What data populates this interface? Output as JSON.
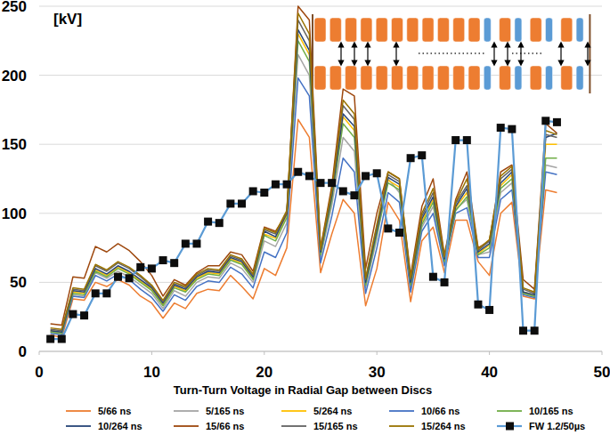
{
  "chart_data": {
    "type": "line",
    "ylabel": "[kV]",
    "xlabel": "Turn-Turn Voltage in Radial Gap between Discs",
    "x": [
      1,
      2,
      3,
      4,
      5,
      6,
      7,
      8,
      9,
      10,
      11,
      12,
      13,
      14,
      15,
      16,
      17,
      18,
      19,
      20,
      21,
      22,
      23,
      24,
      25,
      26,
      27,
      28,
      29,
      30,
      31,
      32,
      33,
      34,
      35,
      36,
      37,
      38,
      39,
      40,
      41,
      42,
      43,
      44,
      45,
      46
    ],
    "xlim": [
      0,
      50
    ],
    "xticks": [
      0,
      10,
      20,
      30,
      40,
      50
    ],
    "ylim": [
      0,
      250
    ],
    "yticks": [
      0,
      50,
      100,
      150,
      200,
      250
    ],
    "grid": true,
    "legend": "bottom",
    "series": [
      {
        "name": "5/66 ns",
        "color": "#ed7d31",
        "values": [
          12,
          10,
          38,
          37,
          50,
          47,
          52,
          48,
          40,
          35,
          24,
          35,
          31,
          42,
          45,
          44,
          55,
          47,
          38,
          60,
          55,
          75,
          168,
          155,
          57,
          85,
          110,
          100,
          33,
          60,
          108,
          95,
          36,
          80,
          90,
          57,
          95,
          95,
          65,
          55,
          100,
          108,
          40,
          38,
          117,
          115
        ]
      },
      {
        "name": "5/165 ns",
        "color": "#a5a5a5",
        "values": [
          14,
          13,
          41,
          40,
          57,
          53,
          58,
          54,
          48,
          42,
          31,
          44,
          40,
          50,
          54,
          53,
          64,
          60,
          50,
          80,
          76,
          93,
          215,
          200,
          68,
          106,
          155,
          145,
          46,
          82,
          125,
          115,
          46,
          90,
          105,
          64,
          103,
          110,
          70,
          72,
          115,
          122,
          42,
          40,
          135,
          133
        ]
      },
      {
        "name": "5/264 ns",
        "color": "#ffc000",
        "values": [
          15,
          14,
          43,
          42,
          59,
          55,
          61,
          57,
          51,
          45,
          34,
          47,
          44,
          53,
          57,
          56,
          67,
          64,
          53,
          85,
          82,
          99,
          230,
          215,
          71,
          112,
          170,
          160,
          49,
          87,
          124,
          119,
          49,
          94,
          110,
          66,
          104,
          115,
          71,
          77,
          120,
          128,
          43,
          41,
          150,
          150
        ]
      },
      {
        "name": "10/66 ns",
        "color": "#4472c4",
        "values": [
          13,
          12,
          40,
          39,
          55,
          51,
          56,
          52,
          45,
          39,
          29,
          41,
          37,
          47,
          51,
          50,
          61,
          56,
          46,
          72,
          68,
          86,
          198,
          185,
          64,
          98,
          140,
          130,
          42,
          75,
          115,
          108,
          43,
          87,
          100,
          62,
          100,
          104,
          68,
          68,
          110,
          117,
          41,
          39,
          130,
          128
        ]
      },
      {
        "name": "10/165 ns",
        "color": "#70ad47",
        "values": [
          14,
          13,
          42,
          41,
          58,
          54,
          60,
          56,
          50,
          44,
          33,
          46,
          43,
          52,
          56,
          55,
          66,
          63,
          52,
          84,
          80,
          97,
          225,
          210,
          70,
          110,
          165,
          155,
          48,
          85,
          122,
          117,
          48,
          92,
          108,
          65,
          102,
          112,
          70,
          75,
          118,
          125,
          42,
          40,
          140,
          140
        ]
      },
      {
        "name": "10/264 ns",
        "color": "#264478",
        "values": [
          15,
          14,
          44,
          43,
          60,
          56,
          62,
          58,
          52,
          46,
          35,
          48,
          45,
          54,
          58,
          57,
          68,
          65,
          54,
          87,
          83,
          100,
          233,
          218,
          72,
          113,
          172,
          163,
          50,
          88,
          126,
          121,
          50,
          96,
          112,
          67,
          105,
          118,
          72,
          78,
          122,
          130,
          43,
          41,
          155,
          158
        ]
      },
      {
        "name": "15/66 ns",
        "color": "#9e480e",
        "values": [
          20,
          19,
          54,
          53,
          76,
          72,
          78,
          73,
          65,
          55,
          40,
          52,
          48,
          57,
          62,
          62,
          72,
          70,
          58,
          90,
          87,
          100,
          250,
          240,
          75,
          120,
          190,
          185,
          60,
          100,
          130,
          125,
          55,
          105,
          125,
          70,
          110,
          130,
          75,
          80,
          130,
          135,
          52,
          45,
          165,
          158
        ]
      },
      {
        "name": "15/165 ns",
        "color": "#636363",
        "values": [
          16,
          15,
          45,
          44,
          62,
          58,
          64,
          60,
          54,
          47,
          36,
          49,
          46,
          55,
          59,
          58,
          69,
          66,
          55,
          88,
          85,
          101,
          240,
          225,
          73,
          115,
          178,
          168,
          52,
          90,
          128,
          123,
          52,
          98,
          115,
          68,
          107,
          120,
          73,
          80,
          125,
          132,
          45,
          42,
          157,
          155
        ]
      },
      {
        "name": "15/264 ns",
        "color": "#997300",
        "values": [
          17,
          16,
          46,
          45,
          63,
          59,
          65,
          61,
          55,
          48,
          37,
          50,
          47,
          56,
          60,
          59,
          70,
          67,
          56,
          89,
          86,
          102,
          245,
          230,
          74,
          117,
          182,
          172,
          53,
          92,
          130,
          125,
          53,
          100,
          118,
          69,
          108,
          125,
          74,
          81,
          127,
          134,
          46,
          43,
          160,
          157
        ]
      },
      {
        "name": "FW 1.2/50µs",
        "color": "#5b9bd5",
        "marker": "square",
        "values": [
          9,
          9,
          27,
          26,
          42,
          42,
          54,
          53,
          61,
          60,
          66,
          64,
          78,
          78,
          94,
          93,
          107,
          107,
          116,
          115,
          121,
          121,
          130,
          127,
          122,
          122,
          116,
          113,
          127,
          129,
          89,
          86,
          140,
          142,
          54,
          50,
          153,
          153,
          34,
          30,
          162,
          161,
          15,
          15,
          167,
          166
        ]
      }
    ]
  }
}
